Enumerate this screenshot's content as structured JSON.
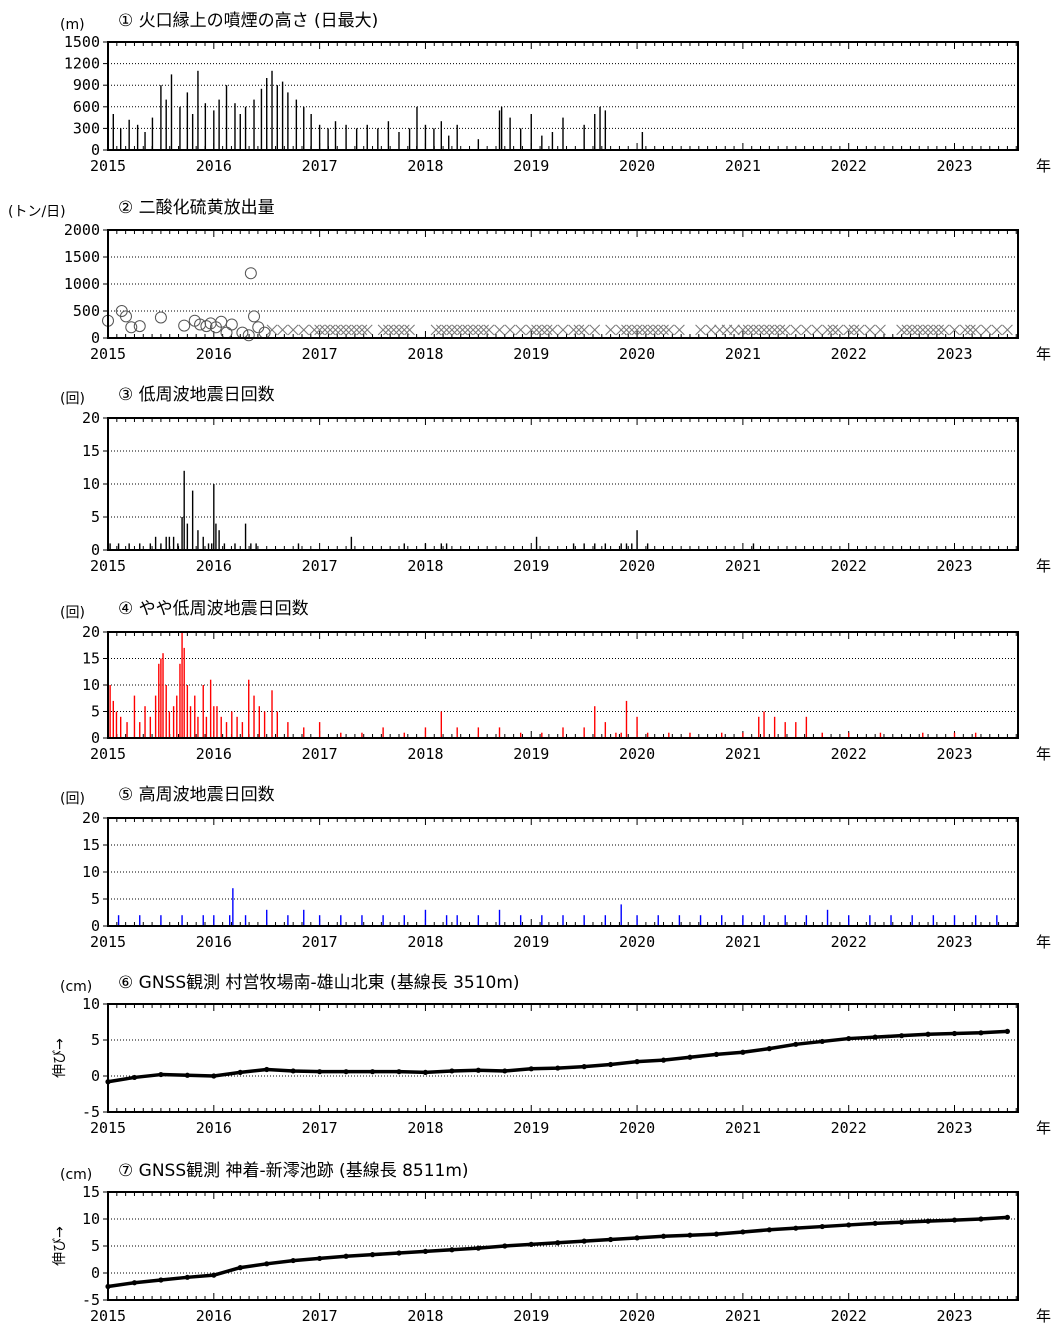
{
  "x_axis": {
    "labels": [
      "2015",
      "2016",
      "2017",
      "2018",
      "2019",
      "2020",
      "2021",
      "2022",
      "2023"
    ],
    "unit": "年"
  },
  "panels": [
    {
      "id": "p1",
      "title": "① 火口縁上の噴煙の高さ (日最大)",
      "unit": "(m)"
    },
    {
      "id": "p2",
      "title": "② 二酸化硫黄放出量",
      "unit": "(トン/日)"
    },
    {
      "id": "p3",
      "title": "③ 低周波地震日回数",
      "unit": "(回)"
    },
    {
      "id": "p4",
      "title": "④ やや低周波地震日回数",
      "unit": "(回)"
    },
    {
      "id": "p5",
      "title": "⑤ 高周波地震日回数",
      "unit": "(回)"
    },
    {
      "id": "p6",
      "title": "⑥ GNSS観測 村営牧場南-雄山北東  (基線長 3510m)",
      "unit": "(cm)",
      "ylabel": "伸び→"
    },
    {
      "id": "p7",
      "title": "⑦ GNSS観測 神着-新澪池跡  (基線長 8511m)",
      "unit": "(cm)",
      "ylabel": "伸び→"
    }
  ],
  "colors": {
    "p1": "#000000",
    "p2": "#555555",
    "p3": "#000000",
    "p4": "#ff0000",
    "p5": "#0000ff",
    "p6": "#000000",
    "p7": "#000000"
  },
  "chart_data": [
    {
      "type": "bar",
      "title": "① 火口縁上の噴煙の高さ (日最大)",
      "ylabel": "(m)",
      "ylim": [
        0,
        1500
      ],
      "yticks": [
        0,
        300,
        600,
        900,
        1200,
        1500
      ],
      "xlim": [
        2015,
        2023.6
      ],
      "x": [
        2015.05,
        2015.12,
        2015.2,
        2015.28,
        2015.35,
        2015.42,
        2015.5,
        2015.55,
        2015.6,
        2015.68,
        2015.75,
        2015.8,
        2015.85,
        2015.92,
        2016.0,
        2016.05,
        2016.12,
        2016.2,
        2016.25,
        2016.3,
        2016.38,
        2016.45,
        2016.5,
        2016.55,
        2016.6,
        2016.65,
        2016.7,
        2016.78,
        2016.85,
        2016.92,
        2017.0,
        2017.08,
        2017.15,
        2017.25,
        2017.35,
        2017.45,
        2017.55,
        2017.65,
        2017.75,
        2017.85,
        2017.92,
        2018.0,
        2018.08,
        2018.15,
        2018.22,
        2018.3,
        2018.5,
        2018.7,
        2018.72,
        2018.8,
        2018.9,
        2019.0,
        2019.1,
        2019.2,
        2019.3,
        2019.5,
        2019.6,
        2019.65,
        2019.7,
        2020.05
      ],
      "values": [
        500,
        300,
        420,
        350,
        250,
        450,
        900,
        700,
        1050,
        600,
        800,
        500,
        1100,
        650,
        550,
        700,
        900,
        650,
        500,
        600,
        700,
        850,
        1000,
        1100,
        900,
        950,
        800,
        700,
        600,
        500,
        350,
        300,
        400,
        350,
        300,
        350,
        300,
        400,
        250,
        300,
        600,
        350,
        300,
        400,
        200,
        350,
        150,
        550,
        600,
        450,
        300,
        500,
        200,
        250,
        450,
        350,
        500,
        600,
        550,
        250
      ]
    },
    {
      "type": "scatter",
      "title": "② 二酸化硫黄放出量",
      "ylabel": "(トン/日)",
      "ylim": [
        0,
        2000
      ],
      "yticks": [
        0,
        500,
        1000,
        1500,
        2000
      ],
      "xlim": [
        2015,
        2023.6
      ],
      "series": [
        {
          "marker": "circle",
          "x": [
            2015.0,
            2015.13,
            2015.17,
            2015.22,
            2015.3,
            2015.5,
            2015.72,
            2015.82,
            2015.87,
            2015.93,
            2015.97,
            2016.02,
            2016.07,
            2016.12,
            2016.17,
            2016.27,
            2016.33,
            2016.35,
            2016.38,
            2016.42,
            2016.48
          ],
          "y": [
            320,
            500,
            400,
            200,
            220,
            380,
            230,
            320,
            250,
            220,
            270,
            200,
            300,
            100,
            250,
            100,
            50,
            1200,
            400,
            200,
            100
          ]
        },
        {
          "marker": "x",
          "x": [
            2016.55,
            2016.65,
            2016.75,
            2016.85,
            2016.95,
            2017.0,
            2017.05,
            2017.1,
            2017.15,
            2017.2,
            2017.25,
            2017.3,
            2017.35,
            2017.4,
            2017.45,
            2017.6,
            2017.65,
            2017.7,
            2017.75,
            2017.8,
            2017.85,
            2018.1,
            2018.15,
            2018.2,
            2018.25,
            2018.3,
            2018.35,
            2018.4,
            2018.45,
            2018.5,
            2018.55,
            2018.6,
            2018.7,
            2018.8,
            2018.9,
            2019.0,
            2019.05,
            2019.1,
            2019.15,
            2019.2,
            2019.3,
            2019.4,
            2019.45,
            2019.5,
            2019.6,
            2019.75,
            2019.85,
            2019.9,
            2019.95,
            2020.0,
            2020.05,
            2020.1,
            2020.15,
            2020.2,
            2020.25,
            2020.3,
            2020.4,
            2020.6,
            2020.7,
            2020.78,
            2020.85,
            2020.92,
            2021.0,
            2021.05,
            2021.1,
            2021.15,
            2021.2,
            2021.25,
            2021.3,
            2021.35,
            2021.4,
            2021.5,
            2021.6,
            2021.7,
            2021.8,
            2021.85,
            2021.9,
            2022.0,
            2022.05,
            2022.1,
            2022.2,
            2022.3,
            2022.5,
            2022.55,
            2022.6,
            2022.65,
            2022.7,
            2022.75,
            2022.8,
            2022.85,
            2022.9,
            2023.0,
            2023.1,
            2023.15,
            2023.2,
            2023.3,
            2023.4,
            2023.5
          ],
          "y": [
            150,
            150,
            150,
            150,
            150,
            150,
            150,
            150,
            150,
            150,
            150,
            150,
            150,
            150,
            150,
            150,
            150,
            150,
            150,
            150,
            150,
            150,
            150,
            150,
            150,
            150,
            150,
            150,
            150,
            150,
            150,
            150,
            150,
            150,
            150,
            150,
            150,
            150,
            150,
            150,
            150,
            150,
            150,
            150,
            150,
            150,
            150,
            150,
            150,
            150,
            150,
            150,
            150,
            150,
            150,
            150,
            150,
            150,
            150,
            150,
            150,
            150,
            150,
            150,
            150,
            150,
            150,
            150,
            150,
            150,
            150,
            150,
            150,
            150,
            150,
            150,
            150,
            150,
            150,
            150,
            150,
            150,
            150,
            150,
            150,
            150,
            150,
            150,
            150,
            150,
            150,
            150,
            150,
            150,
            150,
            150,
            150,
            150
          ]
        }
      ]
    },
    {
      "type": "bar",
      "title": "③ 低周波地震日回数",
      "ylabel": "(回)",
      "ylim": [
        0,
        20
      ],
      "yticks": [
        0,
        5,
        10,
        15,
        20
      ],
      "xlim": [
        2015,
        2023.6
      ],
      "x": [
        2015.02,
        2015.1,
        2015.2,
        2015.3,
        2015.4,
        2015.45,
        2015.5,
        2015.55,
        2015.58,
        2015.62,
        2015.66,
        2015.7,
        2015.72,
        2015.75,
        2015.8,
        2015.85,
        2015.9,
        2015.95,
        2015.98,
        2016.0,
        2016.02,
        2016.05,
        2016.1,
        2016.2,
        2016.3,
        2016.35,
        2016.4,
        2016.8,
        2017.3,
        2017.8,
        2018.0,
        2018.15,
        2018.2,
        2019.05,
        2019.4,
        2019.5,
        2019.6,
        2019.7,
        2019.85,
        2019.9,
        2019.95,
        2020.0,
        2020.1,
        2021.1
      ],
      "values": [
        1,
        1,
        1,
        1,
        1,
        2,
        1,
        2,
        2,
        2,
        1,
        5,
        12,
        4,
        9,
        3,
        2,
        1,
        1,
        10,
        4,
        3,
        1,
        1,
        4,
        1,
        1,
        1,
        2,
        1,
        1,
        1,
        1,
        2,
        1,
        1,
        1,
        1,
        1,
        1,
        1,
        3,
        1,
        1
      ]
    },
    {
      "type": "bar",
      "title": "④ やや低周波地震日回数",
      "ylabel": "(回)",
      "ylim": [
        0,
        20
      ],
      "yticks": [
        0,
        5,
        10,
        15,
        20
      ],
      "xlim": [
        2015,
        2023.6
      ],
      "x": [
        2015.02,
        2015.05,
        2015.08,
        2015.12,
        2015.18,
        2015.25,
        2015.3,
        2015.35,
        2015.4,
        2015.45,
        2015.48,
        2015.5,
        2015.52,
        2015.55,
        2015.58,
        2015.62,
        2015.65,
        2015.68,
        2015.7,
        2015.72,
        2015.75,
        2015.78,
        2015.82,
        2015.85,
        2015.9,
        2015.93,
        2015.97,
        2016.0,
        2016.03,
        2016.07,
        2016.12,
        2016.17,
        2016.22,
        2016.27,
        2016.33,
        2016.38,
        2016.43,
        2016.48,
        2016.55,
        2016.6,
        2016.7,
        2016.85,
        2017.0,
        2017.2,
        2017.4,
        2017.6,
        2017.8,
        2018.0,
        2018.15,
        2018.3,
        2018.5,
        2018.7,
        2018.9,
        2019.1,
        2019.3,
        2019.5,
        2019.6,
        2019.7,
        2019.8,
        2019.85,
        2019.9,
        2020.0,
        2020.1,
        2020.3,
        2020.5,
        2020.8,
        2021.0,
        2021.15,
        2021.2,
        2021.3,
        2021.4,
        2021.5,
        2021.6,
        2021.75,
        2022.0,
        2022.3,
        2022.7,
        2023.0,
        2023.2
      ],
      "values": [
        10,
        7,
        5,
        4,
        3,
        8,
        3,
        6,
        4,
        8,
        14,
        15,
        16,
        10,
        5,
        6,
        8,
        14,
        20,
        17,
        10,
        6,
        8,
        4,
        10,
        4,
        11,
        6,
        6,
        4,
        3,
        5,
        4,
        3,
        11,
        8,
        6,
        5,
        9,
        5,
        3,
        2,
        3,
        1,
        1,
        2,
        1,
        2,
        5,
        2,
        2,
        2,
        1,
        1,
        2,
        2,
        6,
        3,
        1,
        1,
        7,
        4,
        1,
        1,
        1,
        1,
        1,
        4,
        5,
        4,
        3,
        3,
        4,
        1,
        1,
        1,
        1,
        1,
        1
      ]
    },
    {
      "type": "bar",
      "title": "⑤ 高周波地震日回数",
      "ylabel": "(回)",
      "ylim": [
        0,
        20
      ],
      "yticks": [
        0,
        5,
        10,
        15,
        20
      ],
      "xlim": [
        2015,
        2023.6
      ],
      "x": [
        2015.1,
        2015.3,
        2015.5,
        2015.7,
        2015.9,
        2016.0,
        2016.15,
        2016.18,
        2016.3,
        2016.5,
        2016.7,
        2016.85,
        2017.0,
        2017.2,
        2017.4,
        2017.6,
        2017.8,
        2018.0,
        2018.2,
        2018.3,
        2018.5,
        2018.7,
        2018.9,
        2019.1,
        2019.3,
        2019.5,
        2019.7,
        2019.85,
        2020.0,
        2020.2,
        2020.4,
        2020.6,
        2020.8,
        2021.0,
        2021.2,
        2021.4,
        2021.6,
        2021.8,
        2022.0,
        2022.2,
        2022.4,
        2022.6,
        2022.8,
        2023.0,
        2023.2,
        2023.4
      ],
      "values": [
        2,
        2,
        2,
        2,
        2,
        2,
        2,
        7,
        2,
        3,
        2,
        3,
        2,
        2,
        2,
        2,
        2,
        3,
        2,
        2,
        2,
        3,
        2,
        2,
        2,
        2,
        2,
        4,
        2,
        2,
        2,
        2,
        2,
        2,
        2,
        2,
        2,
        3,
        2,
        2,
        2,
        2,
        2,
        2,
        2,
        2
      ]
    },
    {
      "type": "scatter",
      "title": "⑥ GNSS観測 村営牧場南-雄山北東  (基線長 3510m)",
      "ylabel": "伸び→",
      "unit": "(cm)",
      "ylim": [
        -5,
        10
      ],
      "yticks": [
        -5,
        0,
        5,
        10
      ],
      "xlim": [
        2015,
        2023.6
      ],
      "x": [
        2015.0,
        2015.25,
        2015.5,
        2015.75,
        2016.0,
        2016.25,
        2016.5,
        2016.75,
        2017.0,
        2017.25,
        2017.5,
        2017.75,
        2018.0,
        2018.25,
        2018.5,
        2018.75,
        2019.0,
        2019.25,
        2019.5,
        2019.75,
        2020.0,
        2020.25,
        2020.5,
        2020.75,
        2021.0,
        2021.25,
        2021.5,
        2021.75,
        2022.0,
        2022.25,
        2022.5,
        2022.75,
        2023.0,
        2023.25,
        2023.5
      ],
      "y": [
        -0.8,
        -0.2,
        0.2,
        0.1,
        0.0,
        0.5,
        0.9,
        0.7,
        0.6,
        0.6,
        0.6,
        0.6,
        0.5,
        0.7,
        0.8,
        0.7,
        1.0,
        1.1,
        1.3,
        1.6,
        2.0,
        2.2,
        2.6,
        3.0,
        3.3,
        3.8,
        4.4,
        4.8,
        5.2,
        5.4,
        5.6,
        5.8,
        5.9,
        6.0,
        6.2
      ]
    },
    {
      "type": "scatter",
      "title": "⑦ GNSS観測 神着-新澪池跡  (基線長 8511m)",
      "ylabel": "伸び→",
      "unit": "(cm)",
      "ylim": [
        -5,
        15
      ],
      "yticks": [
        -5,
        0,
        5,
        10,
        15
      ],
      "xlim": [
        2015,
        2023.6
      ],
      "x": [
        2015.0,
        2015.25,
        2015.5,
        2015.75,
        2016.0,
        2016.25,
        2016.5,
        2016.75,
        2017.0,
        2017.25,
        2017.5,
        2017.75,
        2018.0,
        2018.25,
        2018.5,
        2018.75,
        2019.0,
        2019.25,
        2019.5,
        2019.75,
        2020.0,
        2020.25,
        2020.5,
        2020.75,
        2021.0,
        2021.25,
        2021.5,
        2021.75,
        2022.0,
        2022.25,
        2022.5,
        2022.75,
        2023.0,
        2023.25,
        2023.5
      ],
      "y": [
        -2.5,
        -1.8,
        -1.3,
        -0.8,
        -0.4,
        1.0,
        1.7,
        2.3,
        2.7,
        3.1,
        3.4,
        3.7,
        4.0,
        4.3,
        4.6,
        5.0,
        5.3,
        5.6,
        5.9,
        6.2,
        6.5,
        6.8,
        7.0,
        7.2,
        7.6,
        8.0,
        8.3,
        8.6,
        8.9,
        9.2,
        9.4,
        9.6,
        9.8,
        10.0,
        10.3
      ]
    }
  ]
}
